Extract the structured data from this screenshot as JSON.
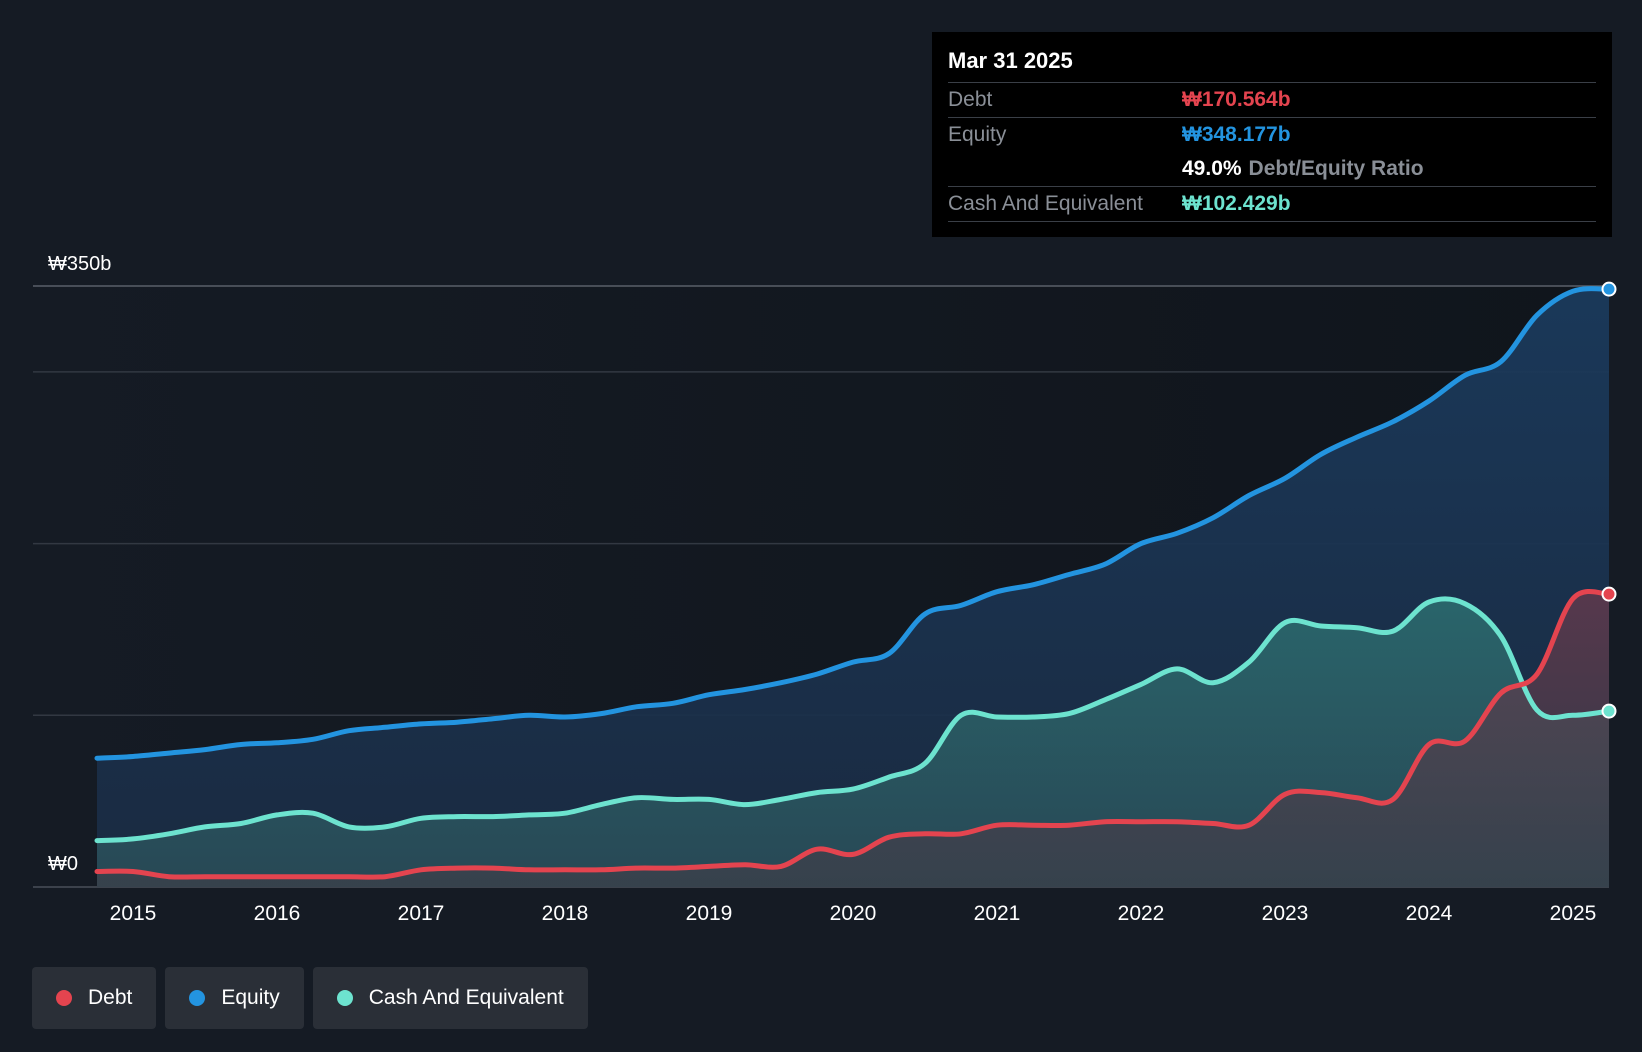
{
  "colors": {
    "debt": "#e4444f",
    "equity": "#2394e0",
    "cash": "#6de3cf",
    "background": "#151b24",
    "grid": "#323842"
  },
  "tooltip": {
    "date": "Mar 31 2025",
    "debt_label": "Debt",
    "debt_value": "₩170.564b",
    "equity_label": "Equity",
    "equity_value": "₩348.177b",
    "ratio_value": "49.0%",
    "ratio_label": "Debt/Equity Ratio",
    "cash_label": "Cash And Equivalent",
    "cash_value": "₩102.429b"
  },
  "legend": {
    "debt": "Debt",
    "equity": "Equity",
    "cash": "Cash And Equivalent"
  },
  "chart_data": {
    "type": "area",
    "title": "",
    "xlabel": "",
    "ylabel": "",
    "y_top_label": "₩350b",
    "y_bottom_label": "₩0",
    "ylim": [
      0,
      350
    ],
    "xlim": [
      2014.75,
      2025.25
    ],
    "x_ticks": [
      "2015",
      "2016",
      "2017",
      "2018",
      "2019",
      "2020",
      "2021",
      "2022",
      "2023",
      "2024",
      "2025"
    ],
    "gridlines": [
      0,
      100,
      200,
      300,
      350
    ],
    "x": [
      2014.75,
      2015.0,
      2015.25,
      2015.5,
      2015.75,
      2016.0,
      2016.25,
      2016.5,
      2016.75,
      2017.0,
      2017.25,
      2017.5,
      2017.75,
      2018.0,
      2018.25,
      2018.5,
      2018.75,
      2019.0,
      2019.25,
      2019.5,
      2019.75,
      2020.0,
      2020.25,
      2020.5,
      2020.75,
      2021.0,
      2021.25,
      2021.5,
      2021.75,
      2022.0,
      2022.25,
      2022.5,
      2022.75,
      2023.0,
      2023.25,
      2023.5,
      2023.75,
      2024.0,
      2024.25,
      2024.5,
      2024.75,
      2025.0,
      2025.25
    ],
    "series": [
      {
        "name": "Debt",
        "values": [
          9,
          9,
          6,
          6,
          6,
          6,
          6,
          6,
          6,
          10,
          11,
          11,
          10,
          10,
          10,
          11,
          11,
          12,
          13,
          12,
          22,
          19,
          29,
          31,
          31,
          36,
          36,
          36,
          38,
          38,
          38,
          37,
          36,
          54,
          55,
          52,
          51,
          83,
          85,
          113,
          124,
          168,
          170.564
        ]
      },
      {
        "name": "Equity",
        "values": [
          75,
          76,
          78,
          80,
          83,
          84,
          86,
          91,
          93,
          95,
          96,
          98,
          100,
          99,
          101,
          105,
          107,
          112,
          115,
          119,
          124,
          131,
          136,
          159,
          164,
          172,
          176,
          182,
          188,
          200,
          206,
          215,
          228,
          238,
          252,
          262,
          271,
          283,
          298,
          306,
          333,
          347,
          348.177
        ]
      },
      {
        "name": "Cash And Equivalent",
        "values": [
          27,
          28,
          31,
          35,
          37,
          42,
          43,
          35,
          35,
          40,
          41,
          41,
          42,
          43,
          48,
          52,
          51,
          51,
          48,
          51,
          55,
          57,
          64,
          72,
          100,
          99,
          99,
          101,
          109,
          118,
          127,
          119,
          131,
          154,
          152,
          151,
          149,
          166,
          165,
          146,
          103,
          100,
          102.429
        ]
      }
    ]
  }
}
